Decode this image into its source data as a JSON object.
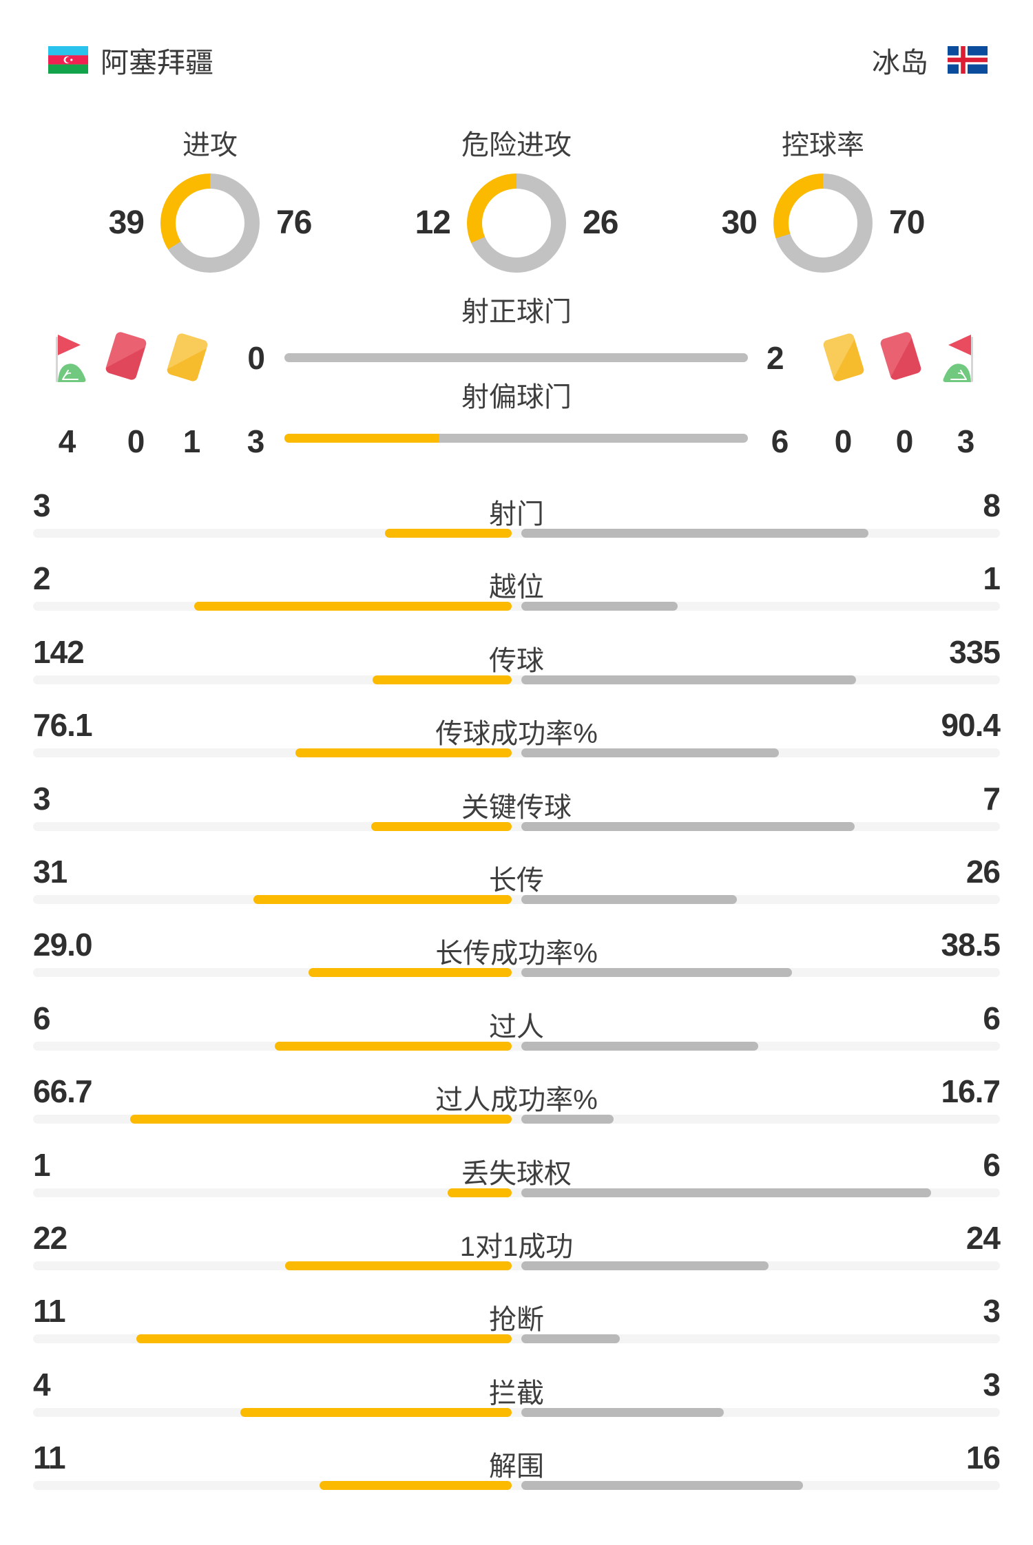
{
  "header": {
    "home": {
      "name": "阿塞拜疆",
      "flag_icon": "azerbaijan-flag"
    },
    "away": {
      "name": "冰岛",
      "flag_icon": "iceland-flag"
    }
  },
  "chart_data": {
    "type": "bar",
    "title": "",
    "donuts": [
      {
        "title": "进攻",
        "home": 39,
        "away": 76
      },
      {
        "title": "危险进攻",
        "home": 12,
        "away": 26
      },
      {
        "title": "控球率",
        "home": 30,
        "away": 70
      }
    ],
    "special_rows": [
      {
        "label": "射正球门",
        "home": 0,
        "away": 2
      },
      {
        "label": "射偏球门",
        "home": 3,
        "away": 6
      }
    ],
    "cards": {
      "home": {
        "corners": 4,
        "red": 0,
        "yellow": 1
      },
      "away": {
        "yellow": 0,
        "red": 0,
        "corners": 3
      }
    },
    "rows": [
      {
        "label": "射门",
        "home": "3",
        "away": "8"
      },
      {
        "label": "越位",
        "home": "2",
        "away": "1"
      },
      {
        "label": "传球",
        "home": "142",
        "away": "335"
      },
      {
        "label": "传球成功率%",
        "home": "76.1",
        "away": "90.4"
      },
      {
        "label": "关键传球",
        "home": "3",
        "away": "7"
      },
      {
        "label": "长传",
        "home": "31",
        "away": "26"
      },
      {
        "label": "长传成功率%",
        "home": "29.0",
        "away": "38.5"
      },
      {
        "label": "过人",
        "home": "6",
        "away": "6"
      },
      {
        "label": "过人成功率%",
        "home": "66.7",
        "away": "16.7"
      },
      {
        "label": "丢失球权",
        "home": "1",
        "away": "6"
      },
      {
        "label": "1对1成功",
        "home": "22",
        "away": "24"
      },
      {
        "label": "抢断",
        "home": "11",
        "away": "3"
      },
      {
        "label": "拦截",
        "home": "4",
        "away": "3"
      },
      {
        "label": "解围",
        "home": "11",
        "away": "16"
      }
    ],
    "legend_position": "none",
    "grid": false
  },
  "colors": {
    "home_accent": "#FBBA00",
    "away_bar": "#B9B9B9",
    "donut_gray": "#C2C2C2",
    "track": "#F4F4F5",
    "title_text": "#3E3E3E",
    "value_text": "#2F2F2F",
    "card_red": "#E0475B",
    "card_yellow": "#F7BC2D",
    "corner_flag_red": "#E94B5F",
    "corner_flag_green": "#70C97F"
  }
}
